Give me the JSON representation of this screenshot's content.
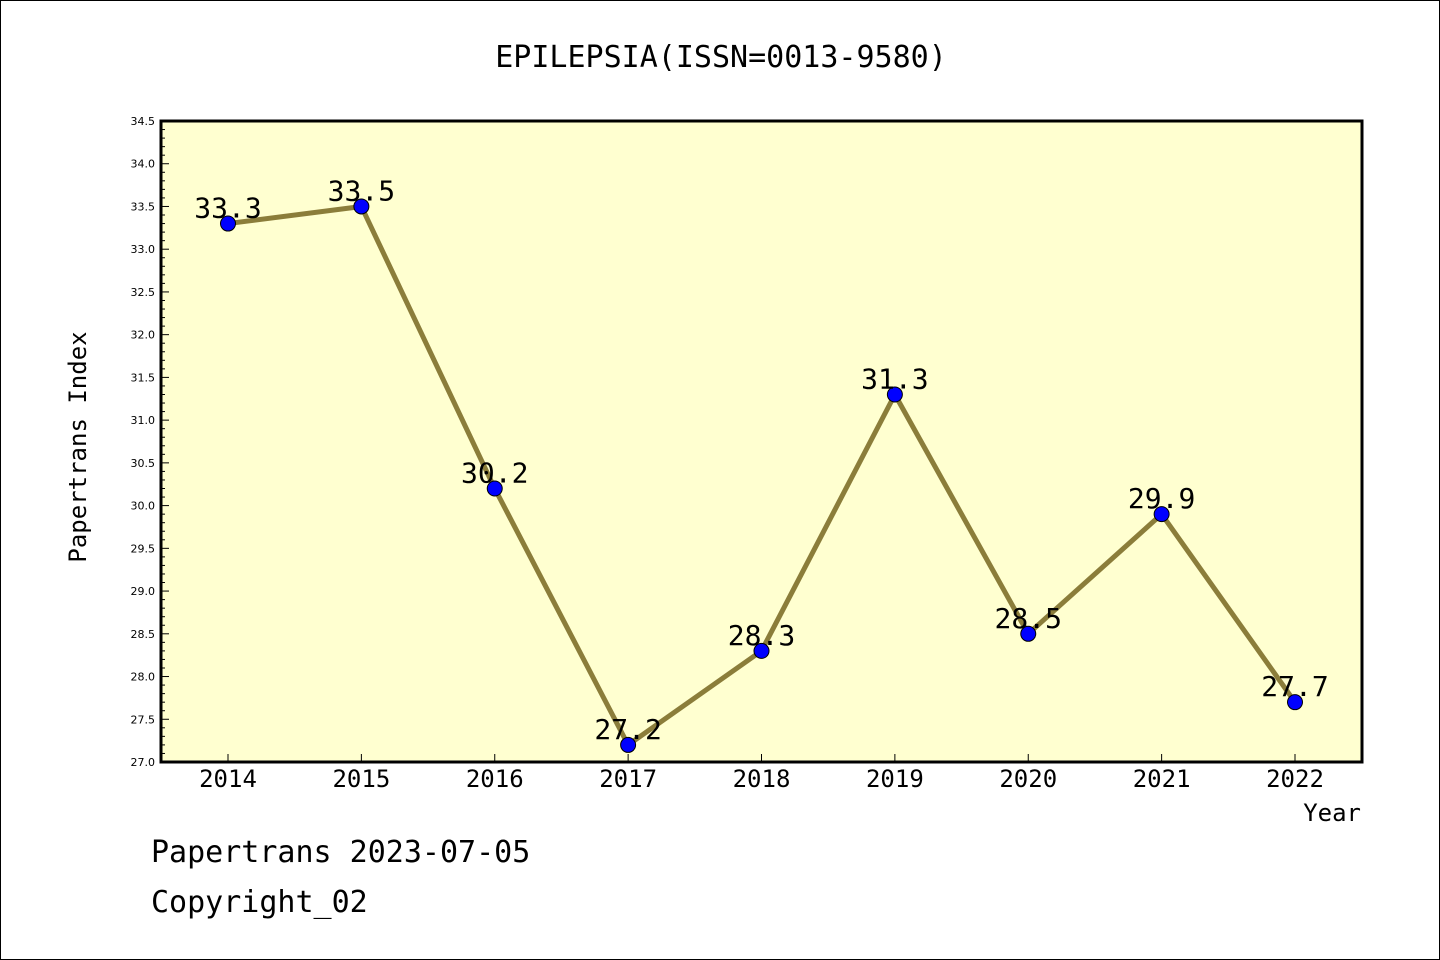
{
  "footer": {
    "line1": "Papertrans 2023-07-05",
    "line2": "Copyright_02"
  },
  "chart_data": {
    "type": "line",
    "title": "EPILEPSIA(ISSN=0013-9580)",
    "xlabel": "Year",
    "ylabel": "Papertrans Index",
    "categories": [
      "2014",
      "2015",
      "2016",
      "2017",
      "2018",
      "2019",
      "2020",
      "2021",
      "2022"
    ],
    "series": [
      {
        "values": [
          33.3,
          33.5,
          30.2,
          27.2,
          28.3,
          31.3,
          28.5,
          29.9,
          27.7
        ],
        "data_labels": [
          "33.3",
          "33.5",
          "30.2",
          "27.2",
          "28.3",
          "31.3",
          "28.5",
          "29.9",
          "27.7"
        ]
      }
    ],
    "ylim": [
      27.0,
      34.5
    ],
    "yticks": [
      "27.0",
      "27.5",
      "28.0",
      "28.5",
      "29.0",
      "29.5",
      "30.0",
      "30.5",
      "31.0",
      "31.5",
      "32.0",
      "32.5",
      "33.0",
      "33.5",
      "34.0",
      "34.5"
    ],
    "grid": false,
    "legend": "none",
    "colors": {
      "plot_background": "#ffffd0",
      "line": "#8b7d3a",
      "marker": "#0000ff",
      "axis": "#000000"
    }
  }
}
